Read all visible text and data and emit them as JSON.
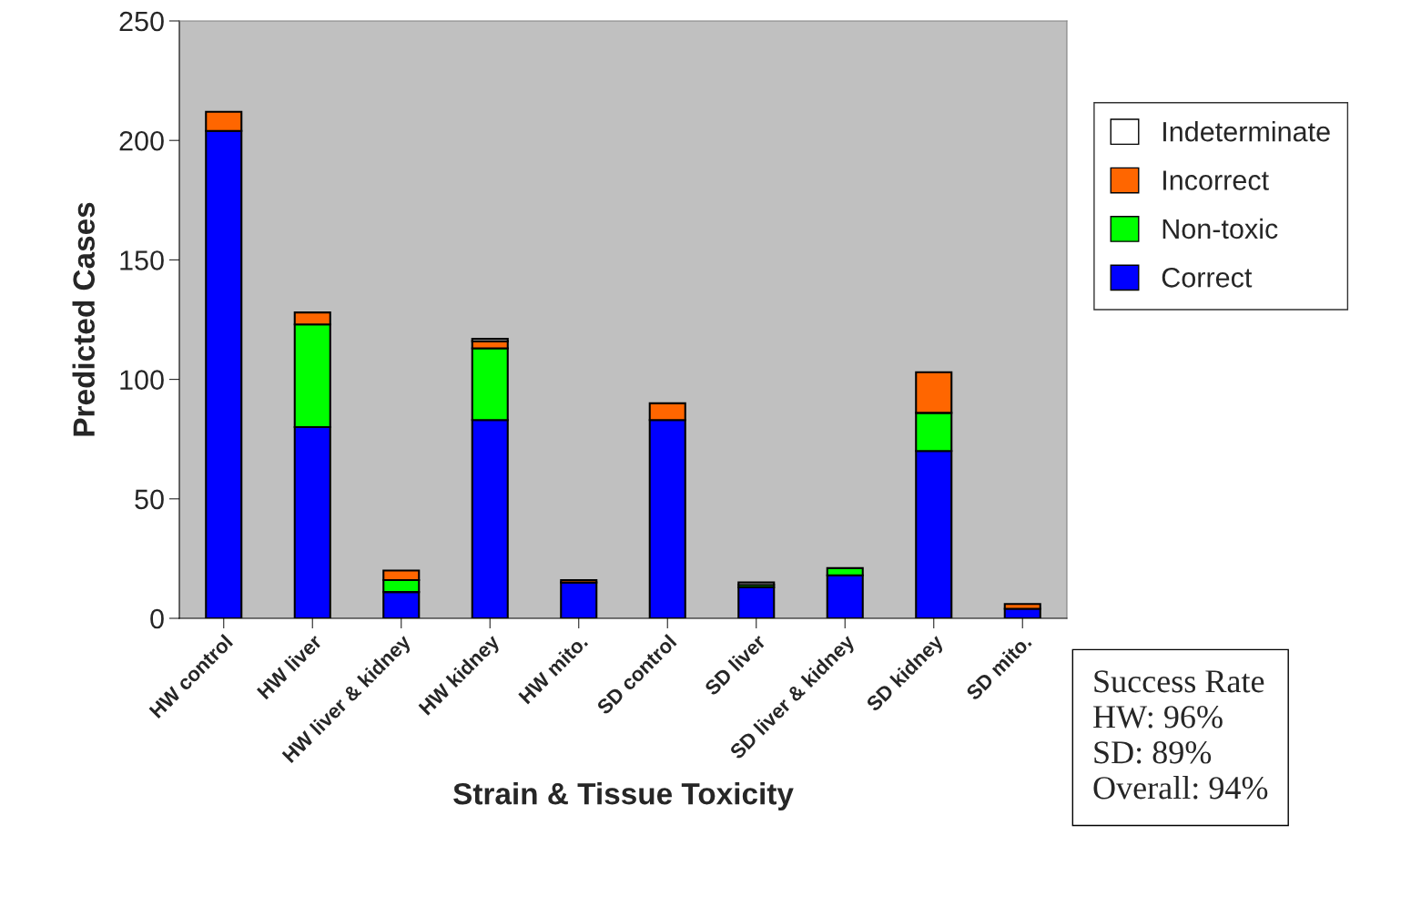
{
  "chart_data": {
    "type": "bar",
    "stacked": true,
    "xlabel": "Strain & Tissue Toxicity",
    "ylabel": "Predicted Cases",
    "categories": [
      "HW control",
      "HW liver",
      "HW liver & kidney",
      "HW kidney",
      "HW mito.",
      "SD control",
      "SD liver",
      "SD liver & kidney",
      "SD kidney",
      "SD mito."
    ],
    "series": [
      {
        "name": "Correct",
        "color": "#0000ff",
        "values": [
          204,
          80,
          11,
          83,
          15,
          83,
          13,
          18,
          70,
          4
        ]
      },
      {
        "name": "Non-toxic",
        "color": "#00ff00",
        "values": [
          0,
          43,
          5,
          30,
          0,
          0,
          1,
          3,
          16,
          0
        ]
      },
      {
        "name": "Incorrect",
        "color": "#ff6600",
        "values": [
          8,
          5,
          4,
          3,
          1,
          7,
          0,
          0,
          17,
          2
        ]
      },
      {
        "name": "Indeterminate",
        "color": "#ffffff",
        "values": [
          0,
          0,
          0,
          1,
          0,
          0,
          1,
          0,
          0,
          0
        ]
      }
    ],
    "ylim": [
      0,
      250
    ],
    "yticks": [
      0,
      50,
      100,
      150,
      200,
      250
    ],
    "grid": false,
    "legend": "right",
    "annotations": [
      "Success Rate",
      "HW: 96%",
      "SD: 89%",
      "Overall: 94%"
    ]
  }
}
